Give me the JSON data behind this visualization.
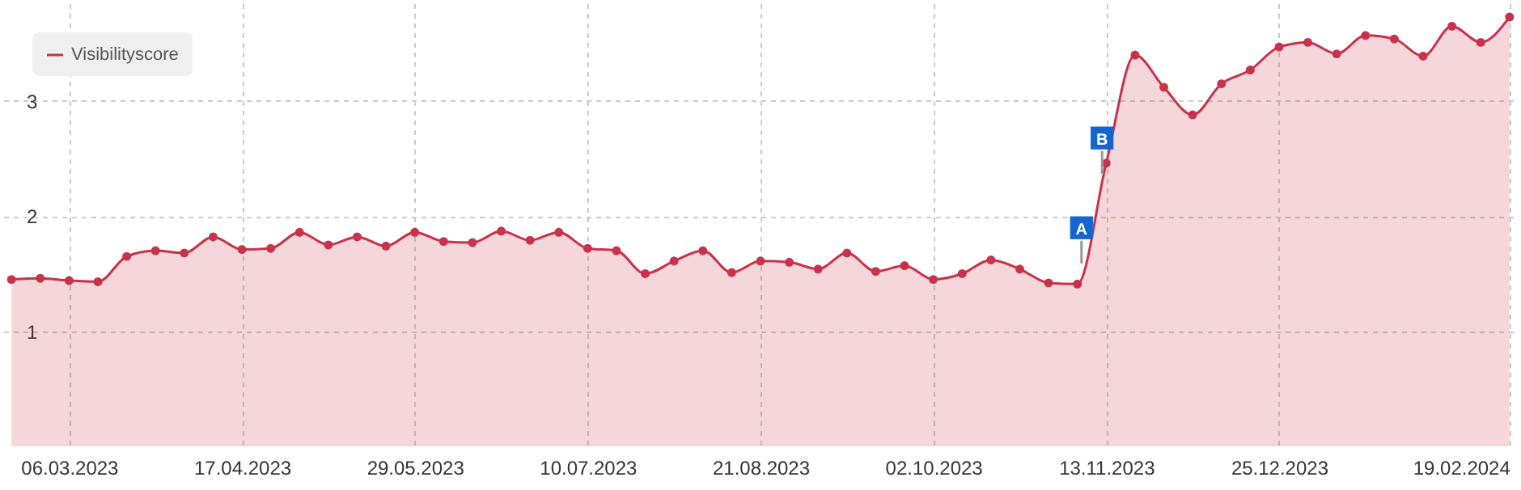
{
  "chart_data": {
    "type": "area",
    "x": [
      "2023-02-20",
      "2023-02-27",
      "2023-03-06",
      "2023-03-13",
      "2023-03-20",
      "2023-03-27",
      "2023-04-03",
      "2023-04-10",
      "2023-04-17",
      "2023-04-24",
      "2023-05-01",
      "2023-05-08",
      "2023-05-15",
      "2023-05-22",
      "2023-05-29",
      "2023-06-05",
      "2023-06-12",
      "2023-06-19",
      "2023-06-26",
      "2023-07-03",
      "2023-07-10",
      "2023-07-17",
      "2023-07-24",
      "2023-07-31",
      "2023-08-07",
      "2023-08-14",
      "2023-08-21",
      "2023-08-28",
      "2023-09-04",
      "2023-09-11",
      "2023-09-18",
      "2023-09-25",
      "2023-10-02",
      "2023-10-09",
      "2023-10-16",
      "2023-10-23",
      "2023-10-30",
      "2023-11-06",
      "2023-11-13",
      "2023-11-20",
      "2023-11-27",
      "2023-12-04",
      "2023-12-11",
      "2023-12-18",
      "2023-12-25",
      "2024-01-01",
      "2024-01-08",
      "2024-01-15",
      "2024-01-22",
      "2024-01-29",
      "2024-02-05",
      "2024-02-12",
      "2024-02-19"
    ],
    "series": [
      {
        "name": "Visibilityscore",
        "color": "#c8324a",
        "values": [
          1.45,
          1.46,
          1.44,
          1.43,
          1.65,
          1.7,
          1.68,
          1.82,
          1.71,
          1.72,
          1.86,
          1.75,
          1.82,
          1.74,
          1.86,
          1.78,
          1.77,
          1.87,
          1.79,
          1.86,
          1.72,
          1.7,
          1.5,
          1.61,
          1.7,
          1.51,
          1.61,
          1.6,
          1.54,
          1.68,
          1.52,
          1.57,
          1.45,
          1.5,
          1.62,
          1.54,
          1.42,
          1.41,
          2.46,
          3.4,
          3.12,
          2.88,
          3.15,
          3.27,
          3.47,
          3.51,
          3.41,
          3.57,
          3.54,
          3.39,
          3.65,
          3.51,
          3.73
        ]
      }
    ],
    "xlim": [
      "2023-02-18",
      "2024-02-21"
    ],
    "xticks": [
      {
        "value": "2023-03-06",
        "label": "06.03.2023"
      },
      {
        "value": "2023-04-17",
        "label": "17.04.2023"
      },
      {
        "value": "2023-05-29",
        "label": "29.05.2023"
      },
      {
        "value": "2023-07-10",
        "label": "10.07.2023"
      },
      {
        "value": "2023-08-21",
        "label": "21.08.2023"
      },
      {
        "value": "2023-10-02",
        "label": "02.10.2023"
      },
      {
        "value": "2023-11-13",
        "label": "13.11.2023"
      },
      {
        "value": "2023-12-25",
        "label": "25.12.2023"
      },
      {
        "value": "2024-02-19",
        "label": "19.02.2024"
      }
    ],
    "ylim": [
      0,
      3.85
    ],
    "yticks": [
      1,
      2,
      3
    ],
    "grid": true,
    "legend": "top left",
    "marker": "circle",
    "line_style": "solid",
    "annotations": [
      {
        "text": "A",
        "x": "2023-11-07",
        "y": 1.59
      },
      {
        "text": "B",
        "x": "2023-11-12",
        "y": 2.37
      }
    ]
  }
}
